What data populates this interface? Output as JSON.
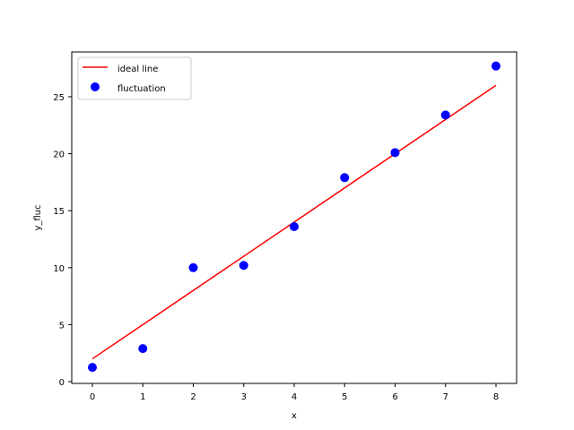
{
  "chart_data": {
    "type": "scatter",
    "title": "",
    "xlabel": "x",
    "ylabel": "y_fluc",
    "xlim": [
      -0.4,
      8.4
    ],
    "ylim": [
      -0.1,
      28.8
    ],
    "xticks": [
      0,
      1,
      2,
      3,
      4,
      5,
      6,
      7,
      8
    ],
    "yticks": [
      0,
      5,
      10,
      15,
      20,
      25
    ],
    "grid": false,
    "legend_position": "upper left",
    "series": [
      {
        "name": "ideal line",
        "kind": "line",
        "color": "#ff0000",
        "x": [
          0,
          8
        ],
        "y": [
          2,
          26
        ]
      },
      {
        "name": "fluctuation",
        "kind": "scatter",
        "color": "#0000ff",
        "x": [
          0,
          1,
          2,
          3,
          4,
          5,
          6,
          7,
          8
        ],
        "y": [
          1.25,
          2.9,
          10.0,
          10.2,
          13.6,
          17.9,
          20.1,
          23.4,
          27.7
        ]
      }
    ]
  }
}
